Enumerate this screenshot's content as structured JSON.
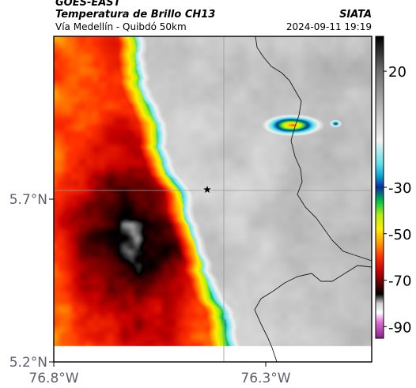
{
  "header": {
    "satellite": "GOES-EAST",
    "product": "Temperatura de Brillo CH13",
    "region": "Vía Medellín - Quibdó 50km",
    "source": "SIATA",
    "datetime": "2024-09-11 19:19"
  },
  "map": {
    "lat_ticks": [
      {
        "value": 5.7,
        "label": "5.7°N"
      },
      {
        "value": 5.2,
        "label": "5.2°N"
      }
    ],
    "lon_ticks": [
      {
        "value": -76.8,
        "label": "76.8°W"
      },
      {
        "value": -76.3,
        "label": "76.3°W"
      }
    ],
    "extent": {
      "lon_min": -76.8,
      "lon_max": -76.05,
      "lat_min": 5.2,
      "lat_max": 6.2
    },
    "gridlines": true,
    "marker": {
      "type": "star",
      "lon": -76.38,
      "lat": 5.7
    },
    "colors": {
      "frame": "#000000",
      "grid": "#9a9a9a",
      "border": "#1a1a1a"
    }
  },
  "colorbar": {
    "tick_labels": [
      "20",
      "-30",
      "-50",
      "-70",
      "-90"
    ],
    "tick_values": [
      20,
      -30,
      -50,
      -70,
      -90
    ],
    "range": [
      -95,
      35
    ],
    "stops": [
      {
        "v": 35,
        "c": "#000000"
      },
      {
        "v": 20,
        "c": "#6e6e6e"
      },
      {
        "v": 0,
        "c": "#c8c8c8"
      },
      {
        "v": -10,
        "c": "#f2f2f2"
      },
      {
        "v": -20,
        "c": "#5fe0ea"
      },
      {
        "v": -25,
        "c": "#0aa8d4"
      },
      {
        "v": -30,
        "c": "#0a2a9a"
      },
      {
        "v": -36,
        "c": "#00c44a"
      },
      {
        "v": -42,
        "c": "#b8ee10"
      },
      {
        "v": -48,
        "c": "#ffee00"
      },
      {
        "v": -54,
        "c": "#ff9a00"
      },
      {
        "v": -60,
        "c": "#ff3000"
      },
      {
        "v": -66,
        "c": "#c80000"
      },
      {
        "v": -72,
        "c": "#500000"
      },
      {
        "v": -76,
        "c": "#000000"
      },
      {
        "v": -80,
        "c": "#cfcfcf"
      },
      {
        "v": -84,
        "c": "#ffffff"
      },
      {
        "v": -88,
        "c": "#e070d8"
      },
      {
        "v": -95,
        "c": "#8a1e8a"
      }
    ]
  }
}
